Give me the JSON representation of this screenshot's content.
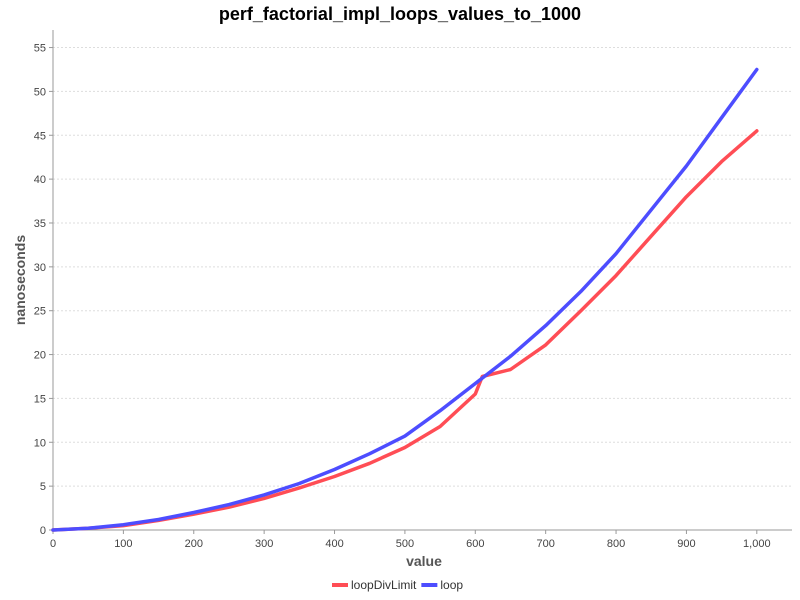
{
  "chart_data": {
    "type": "line",
    "title": "perf_factorial_impl_loops_values_to_1000",
    "xlabel": "value",
    "ylabel": "nanoseconds",
    "xlim": [
      0,
      1050
    ],
    "ylim": [
      0,
      57
    ],
    "x_ticks": [
      0,
      100,
      200,
      300,
      400,
      500,
      600,
      700,
      800,
      900,
      1000
    ],
    "x_tick_labels": [
      "0",
      "100",
      "200",
      "300",
      "400",
      "500",
      "600",
      "700",
      "800",
      "900",
      "1,000"
    ],
    "y_ticks": [
      0,
      5,
      10,
      15,
      20,
      25,
      30,
      35,
      40,
      45,
      50,
      55
    ],
    "y_tick_labels": [
      "0",
      "5",
      "10",
      "15",
      "20",
      "25",
      "30",
      "35",
      "40",
      "45",
      "50",
      "55"
    ],
    "grid": true,
    "legend_position": "bottom-center",
    "series": [
      {
        "name": "loopDivLimit",
        "color": "#ff4d55",
        "x": [
          0,
          50,
          100,
          150,
          200,
          250,
          300,
          350,
          400,
          450,
          500,
          550,
          600,
          610,
          650,
          700,
          750,
          800,
          850,
          900,
          950,
          1000
        ],
        "y": [
          0,
          0.2,
          0.5,
          1.1,
          1.8,
          2.6,
          3.6,
          4.8,
          6.1,
          7.6,
          9.4,
          11.8,
          15.5,
          17.5,
          18.3,
          21.1,
          25.0,
          29.0,
          33.5,
          38.0,
          42.0,
          45.5
        ]
      },
      {
        "name": "loop",
        "color": "#4d4dff",
        "x": [
          0,
          50,
          100,
          150,
          200,
          250,
          300,
          350,
          400,
          450,
          500,
          550,
          600,
          650,
          700,
          750,
          800,
          850,
          900,
          950,
          1000
        ],
        "y": [
          0,
          0.2,
          0.6,
          1.2,
          2.0,
          2.9,
          4.0,
          5.3,
          6.9,
          8.7,
          10.7,
          13.6,
          16.7,
          19.8,
          23.3,
          27.2,
          31.5,
          36.5,
          41.5,
          47.0,
          52.5
        ]
      }
    ]
  }
}
